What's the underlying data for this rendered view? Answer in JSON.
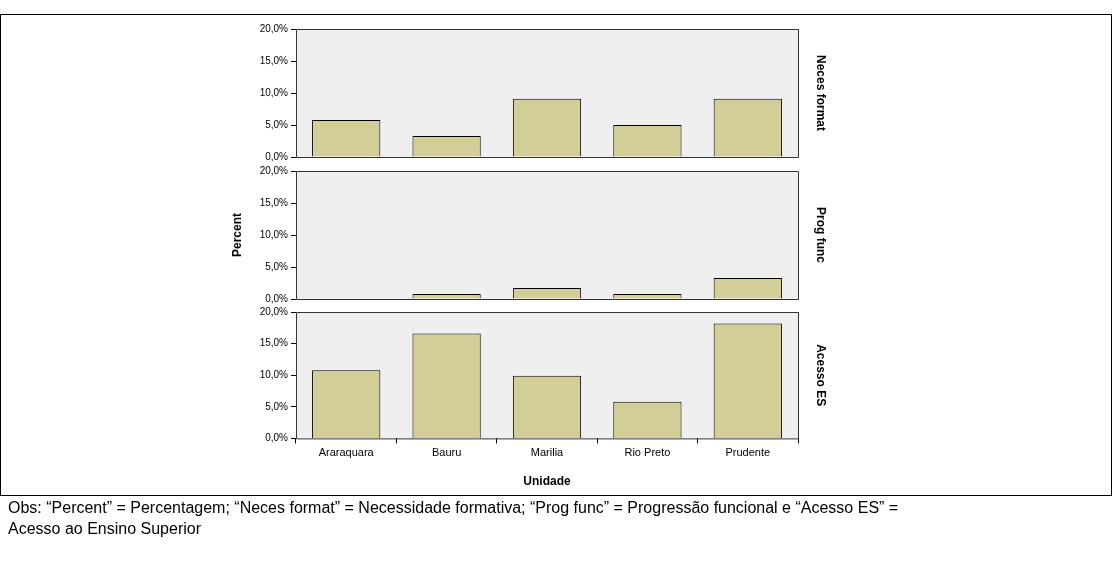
{
  "chart_data": [
    {
      "type": "bar",
      "categories": [
        null,
        null,
        null,
        null,
        null
      ],
      "values": [
        5.8,
        3.3,
        9.1,
        5.0,
        9.1
      ],
      "color": "#d3ce97",
      "y2label": "Neces format",
      "ylim": [
        0,
        20
      ],
      "yticks": [
        {
          "value": 0,
          "label": "0,0%"
        },
        {
          "value": 5,
          "label": "5,0%"
        },
        {
          "value": 10,
          "label": "10,0%"
        },
        {
          "value": 15,
          "label": "15,0%"
        },
        {
          "value": 20,
          "label": "20,0%"
        }
      ],
      "tick_labels": "y",
      "legend": false
    },
    {
      "type": "bar",
      "categories": [
        null,
        null,
        null,
        null,
        null
      ],
      "values": [
        0,
        0.8,
        1.7,
        0.8,
        3.3
      ],
      "color": "#d3ce97",
      "ylabel": "Percent",
      "y2label": "Prog func",
      "ylim": [
        0,
        20
      ],
      "yticks": [
        {
          "value": 0,
          "label": "0,0%"
        },
        {
          "value": 5,
          "label": "5,0%"
        },
        {
          "value": 10,
          "label": "10,0%"
        },
        {
          "value": 15,
          "label": "15,0%"
        },
        {
          "value": 20,
          "label": "20,0%"
        }
      ],
      "tick_labels": "y",
      "legend": false
    },
    {
      "type": "bar",
      "categories": [
        "Araraquara",
        "Bauru",
        "Marilia",
        "Rio Preto",
        "Prudente"
      ],
      "values": [
        10.8,
        16.6,
        9.9,
        5.8,
        18.2
      ],
      "color": "#d3ce97",
      "xlabel": "Unidade",
      "y2label": "Acesso ES",
      "ylim": [
        0,
        20
      ],
      "yticks": [
        {
          "value": 0,
          "label": "0,0%"
        },
        {
          "value": 5,
          "label": "5,0%"
        },
        {
          "value": 10,
          "label": "10,0%"
        },
        {
          "value": 15,
          "label": "15,0%"
        },
        {
          "value": 20,
          "label": "20,0%"
        }
      ],
      "legend": false,
      "annotations": [
        "Obs: “Percent” = Percentagem; “Neces format” = Necessidade formativa; “Prog func” = Progressão funcional e “Acesso ES” = Acesso ao Ensino Superior"
      ]
    }
  ]
}
